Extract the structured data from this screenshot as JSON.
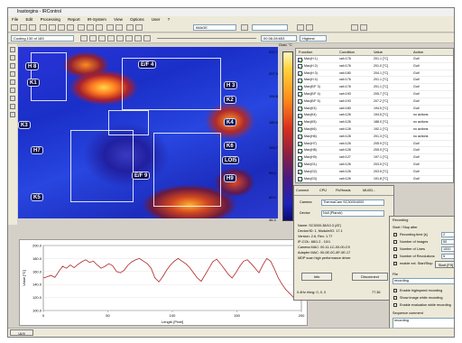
{
  "app": {
    "title": "Irastorgins - IRControl"
  },
  "menu": [
    "File",
    "Edit",
    "Processing",
    "Report",
    "IR-System",
    "View",
    "Options",
    "User",
    "?"
  ],
  "toolbar": {
    "image_combo": "IMAGE",
    "status_text": "Cooling 130 of 183",
    "time_text": "00:36:28:653",
    "range_combo": "Highest"
  },
  "scale": {
    "unit": "Grad. °C",
    "labels": [
      "222.7",
      "207.0",
      "194.8",
      "180.0",
      "153.7",
      "99.0",
      "60.0",
      "46.3"
    ]
  },
  "rois": [
    "H 8",
    "E/F 4",
    "K1",
    "H 3",
    "K2",
    "K3",
    "K4",
    "H7",
    "K6",
    "LOI5",
    "E/F 9",
    "H9",
    "K5"
  ],
  "table": {
    "headers": [
      "Function",
      "Condition",
      "Value",
      "Action"
    ],
    "rows": [
      {
        "fn": "Max(H 1)",
        "cond": "val<176",
        "val": "201.1 [°C]",
        "act": "Gut!"
      },
      {
        "fn": "Max(H 2)",
        "cond": "val<176",
        "val": "201.0 [°C]",
        "act": "Gut!"
      },
      {
        "fn": "Max(H 3)",
        "cond": "val<180",
        "val": "204.1 [°C]",
        "act": "Gut!"
      },
      {
        "fn": "Max(H 4)",
        "cond": "val<176",
        "val": "201.1 [°C]",
        "act": "Gut!"
      },
      {
        "fn": "Max(E/F 3)",
        "cond": "val<176",
        "val": "201.1 [°C]",
        "act": "Gut!"
      },
      {
        "fn": "Max(E/F 4)",
        "cond": "val<190",
        "val": "205.7 [°C]",
        "act": "Gut!"
      },
      {
        "fn": "Max(E/F 5)",
        "cond": "val<193",
        "val": "207.2 [°C]",
        "act": "Gut!"
      },
      {
        "fn": "Max(K3)",
        "cond": "val<180",
        "val": "194.5 [°C]",
        "act": "Gut!"
      },
      {
        "fn": "Max(K4)",
        "cond": "val<126",
        "val": "194.5 [°C]",
        "act": "no actions"
      },
      {
        "fn": "Max(K5)",
        "cond": "val<126",
        "val": "188.0 [°C]",
        "act": "no actions"
      },
      {
        "fn": "Max(K6)",
        "cond": "val<126",
        "val": "192.1 [°C]",
        "act": "no actions"
      },
      {
        "fn": "Max(H6)",
        "cond": "val<128",
        "val": "201.3 [°C]",
        "act": "no actions"
      },
      {
        "fn": "Max(H7)",
        "cond": "val<126",
        "val": "205.9 [°C]",
        "act": "Gut!"
      },
      {
        "fn": "Max(H8)",
        "cond": "val<126",
        "val": "205.9 [°C]",
        "act": "Gut!"
      },
      {
        "fn": "Max(H9)",
        "cond": "val<127",
        "val": "197.1 [°C]",
        "act": "Gut!"
      },
      {
        "fn": "Max(G1)",
        "cond": "val<126",
        "val": "203.5 [°C]",
        "act": "Gut!"
      },
      {
        "fn": "Max(G2)",
        "cond": "val<126",
        "val": "203.5 [°C]",
        "act": "Gut!"
      },
      {
        "fn": "Max(G3)",
        "cond": "val<126",
        "val": "191.8 [°C]",
        "act": "Gut!"
      }
    ]
  },
  "profile": {
    "ylabel": "Value [°C]",
    "xlabel": "Length [Pixel]",
    "yticks": [
      "200.0",
      "180.0",
      "160.0",
      "140.0",
      "120.0",
      "100.0"
    ],
    "xticks": [
      "0",
      "50",
      "100",
      "150",
      "200"
    ],
    "points": [
      150,
      152,
      154,
      151,
      160,
      168,
      165,
      170,
      166,
      171,
      175,
      178,
      174,
      176,
      170,
      165,
      168,
      172,
      169,
      160,
      158,
      162,
      170,
      175,
      178,
      180,
      176,
      172,
      165,
      150,
      144,
      152,
      162,
      170,
      176,
      180,
      176,
      172,
      166,
      158,
      150,
      145,
      155,
      165,
      175,
      179,
      172,
      164,
      156,
      150,
      158,
      168,
      176,
      178,
      172,
      165,
      158,
      170,
      180,
      176,
      164,
      150,
      140,
      132,
      126,
      120,
      118,
      115
    ]
  },
  "connect_panel": {
    "tabs": [
      "Connect",
      "CPU",
      "Fb/Heads",
      "MUXD..."
    ],
    "camera_label": "Camera",
    "camera_value": "ThermaCam SC3000/4000",
    "device_label": "Device",
    "device_value": "Null (Planck)",
    "info_lines": [
      "Name: SC3000-38/10.3 (AT)",
      "Device/ID: 1, Module/ID: 17.1",
      "Version: 2.6, Rev: 1.77",
      "IP-COL: 68/1.2 - 10/1",
      "Camera MAC: 00-11-1C-00-00-C9",
      "Adapter MAC: 00-0E-0C-8F-0E-17",
      "MDP scan high performance driver"
    ],
    "info_button": "Info",
    "disconnect_button": "Disconnect",
    "status": "0.4Hz rhing: 0, 0, 0",
    "status_right": "77.36"
  },
  "recording_panel": {
    "title": "Recording",
    "group_label": "Start / Stop after",
    "options": [
      "Recording time [s]",
      "Number of Images",
      "Number of Lines",
      "Number of Revolutions",
      "enable ext. Start/Stop"
    ],
    "values": [
      "2",
      "50",
      "1000",
      "5",
      ""
    ],
    "start_button": "Start [F9]",
    "file_label": "File",
    "file_value": "recording",
    "checks": [
      "Enable highspeed recording",
      "Show image while recording",
      "Enable evaluation while recording"
    ],
    "sequence_label": "Sequence comment",
    "sequence_value": "recording"
  },
  "status_tab": "UI/II"
}
